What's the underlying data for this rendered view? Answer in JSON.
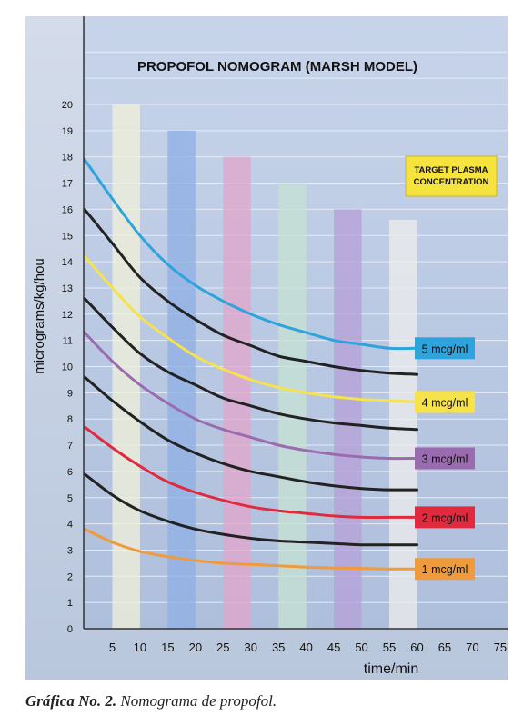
{
  "chart_data": {
    "type": "line",
    "title": "PROPOFOL NOMOGRAM (MARSH MODEL)",
    "xlabel": "time/min",
    "ylabel": "micrograms/kg/hou",
    "xlim": [
      0,
      75
    ],
    "ylim": [
      0,
      20
    ],
    "x_ticks": [
      "5",
      "10",
      "15",
      "20",
      "25",
      "30",
      "35",
      "40",
      "45",
      "50",
      "55",
      "60",
      "65",
      "70",
      "75"
    ],
    "y_ticks": [
      "0",
      "1",
      "2",
      "3",
      "4",
      "5",
      "6",
      "7",
      "8",
      "9",
      "10",
      "11",
      "12",
      "13",
      "14",
      "15",
      "16",
      "17",
      "18",
      "19",
      "20"
    ],
    "grid": true,
    "legend_title": "TARGET PLASMA CONCENTRATION",
    "legend_position": "right",
    "background_bars": [
      {
        "x": [
          5,
          10
        ],
        "top": 20,
        "color": "#efefd9"
      },
      {
        "x": [
          15,
          20
        ],
        "top": 19,
        "color": "#8fb0e4"
      },
      {
        "x": [
          25,
          30
        ],
        "top": 18,
        "color": "#e0a6cc"
      },
      {
        "x": [
          35,
          40
        ],
        "top": 17,
        "color": "#c6e2d4"
      },
      {
        "x": [
          45,
          50
        ],
        "top": 16,
        "color": "#b6a2d8"
      },
      {
        "x": [
          55,
          60
        ],
        "top": 15.6,
        "color": "#ececec"
      }
    ],
    "x": [
      0,
      5,
      10,
      15,
      20,
      25,
      30,
      35,
      40,
      45,
      50,
      55,
      60
    ],
    "series": [
      {
        "name": "5 mcg/ml",
        "color": "#2fa3dc",
        "values": [
          17.9,
          16.4,
          15.0,
          13.9,
          13.1,
          12.5,
          12.0,
          11.6,
          11.3,
          11.0,
          10.85,
          10.7,
          10.7
        ]
      },
      {
        "values": [
          16.0,
          14.7,
          13.4,
          12.5,
          11.8,
          11.2,
          10.8,
          10.4,
          10.2,
          10.0,
          9.85,
          9.75,
          9.7
        ],
        "color": "#222222"
      },
      {
        "name": "4 mcg/ml",
        "color": "#f6e24a",
        "values": [
          14.2,
          13.0,
          11.9,
          11.1,
          10.4,
          9.9,
          9.5,
          9.2,
          9.0,
          8.85,
          8.75,
          8.7,
          8.65
        ]
      },
      {
        "values": [
          12.6,
          11.5,
          10.5,
          9.8,
          9.3,
          8.8,
          8.5,
          8.2,
          8.0,
          7.85,
          7.75,
          7.65,
          7.6
        ],
        "color": "#222222"
      },
      {
        "name": "3 mcg/ml",
        "color": "#9b6bb0",
        "values": [
          11.3,
          10.2,
          9.3,
          8.6,
          8.0,
          7.6,
          7.3,
          7.0,
          6.8,
          6.65,
          6.55,
          6.5,
          6.5
        ]
      },
      {
        "values": [
          9.6,
          8.7,
          7.9,
          7.2,
          6.7,
          6.3,
          6.0,
          5.8,
          5.6,
          5.45,
          5.35,
          5.3,
          5.3
        ],
        "color": "#222222"
      },
      {
        "name": "2 mcg/ml",
        "color": "#e02a3e",
        "values": [
          7.7,
          6.9,
          6.2,
          5.6,
          5.2,
          4.9,
          4.65,
          4.5,
          4.4,
          4.3,
          4.25,
          4.25,
          4.25
        ]
      },
      {
        "values": [
          5.9,
          5.1,
          4.5,
          4.1,
          3.8,
          3.6,
          3.45,
          3.35,
          3.3,
          3.25,
          3.2,
          3.2,
          3.2
        ],
        "color": "#222222"
      },
      {
        "name": "1 mcg/ml",
        "color": "#ef9a3c",
        "values": [
          3.8,
          3.3,
          2.95,
          2.75,
          2.6,
          2.5,
          2.45,
          2.4,
          2.35,
          2.32,
          2.3,
          2.28,
          2.28
        ]
      }
    ]
  },
  "caption": {
    "label": "Gráfica No. 2.",
    "text": " Nomograma de propofol."
  }
}
